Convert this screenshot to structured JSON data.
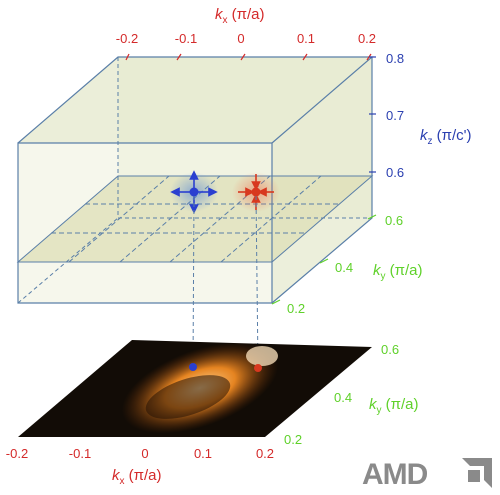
{
  "top_box": {
    "kx_axis": {
      "label_main": "k",
      "label_sub": "x",
      "label_unit": " (π/a)",
      "ticks": [
        "-0.2",
        "-0.1",
        "0",
        "0.1",
        "0.2"
      ]
    },
    "kz_axis": {
      "label_main": "k",
      "label_sub": "z",
      "label_unit": " (π/c')",
      "ticks": [
        "0.8",
        "0.7",
        "0.6"
      ]
    },
    "ky_axis": {
      "label_main": "k",
      "label_sub": "y",
      "label_unit": " (π/a)",
      "ticks": [
        "0.6",
        "0.4",
        "0.2"
      ]
    }
  },
  "bottom_map": {
    "kx_axis": {
      "label_main": "k",
      "label_sub": "x",
      "label_unit": " (π/a)",
      "ticks": [
        "-0.2",
        "-0.1",
        "0",
        "0.1",
        "0.2"
      ]
    },
    "ky_axis": {
      "label_main": "k",
      "label_sub": "y",
      "label_unit": " (π/a)",
      "ticks": [
        "0.6",
        "0.4",
        "0.2"
      ]
    }
  },
  "logo": {
    "text": "AMD"
  },
  "colors": {
    "kx": "#d42a2a",
    "kz": "#2a3fb0",
    "ky": "#5fd12a",
    "box_edge": "#5a7fa8",
    "box_fill": "#eef0dc",
    "blue_point": "#2a3fd0",
    "red_point": "#d8381f",
    "logo": "#8a8a8a"
  }
}
